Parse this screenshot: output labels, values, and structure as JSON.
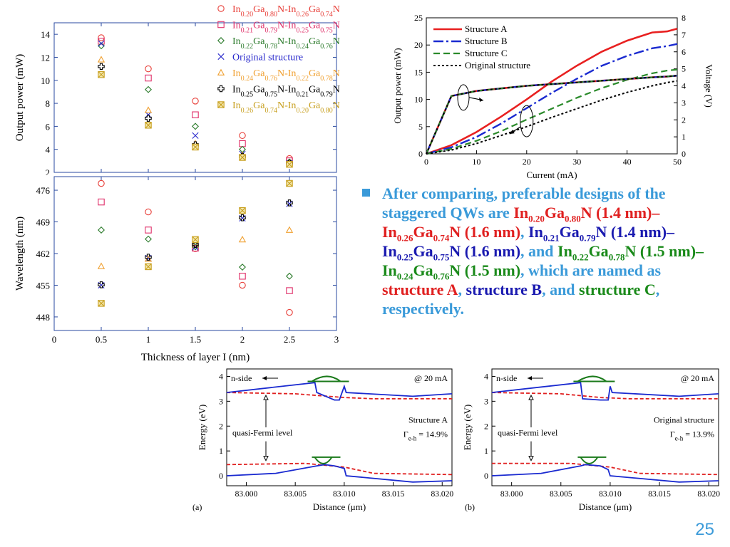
{
  "slide": {
    "page_number": "25",
    "bullet_segments": [
      {
        "text": "After comparing, preferable designs of the staggered QWs are ",
        "color": "light"
      },
      {
        "text": "In0.20Ga0.80N (1.4 nm)–In0.26Ga0.74N (1.6 nm)",
        "color": "red"
      },
      {
        "text": ", ",
        "color": "light"
      },
      {
        "text": "In0.21Ga0.79N (1.4 nm)–In0.25Ga0.75N (1.6 nm)",
        "color": "blue"
      },
      {
        "text": ", and ",
        "color": "light"
      },
      {
        "text": "In0.22Ga0.78N (1.5 nm)–In0.24Ga0.76N (1.5 nm)",
        "color": "green"
      },
      {
        "text": ", which are named as ",
        "color": "light"
      },
      {
        "text": "structure A",
        "color": "red"
      },
      {
        "text": ", ",
        "color": "light"
      },
      {
        "text": "structure B",
        "color": "blue"
      },
      {
        "text": ", and ",
        "color": "light"
      },
      {
        "text": "structure C",
        "color": "green"
      },
      {
        "text": ", respectively.",
        "color": "light"
      }
    ],
    "colors": {
      "light": "#3a9ad9",
      "red": "#e02020",
      "blue": "#1a1ab0",
      "green": "#1a8a1a"
    }
  },
  "chart_data": [
    {
      "type": "scatter",
      "id": "power-vs-thickness",
      "xlabel": "Thickness of layer I (nm)",
      "ylabel": "Output power (mW)",
      "xlim": [
        0,
        3
      ],
      "ylim": [
        2,
        15
      ],
      "xticks": [
        0,
        0.5,
        1,
        1.5,
        2,
        2.5,
        3
      ],
      "yticks": [
        2,
        4,
        6,
        8,
        10,
        12,
        14
      ],
      "x": [
        0.5,
        1,
        1.5,
        2,
        2.5
      ],
      "series": [
        {
          "name": "In0.20Ga0.80N-In0.26Ga0.74N",
          "marker": "circle",
          "color": "#e8403a",
          "values": [
            13.7,
            11.0,
            8.2,
            5.2,
            3.2
          ]
        },
        {
          "name": "In0.21Ga0.79N-In0.25Ga0.75N",
          "marker": "square",
          "color": "#e0306a",
          "values": [
            13.4,
            10.2,
            7.0,
            4.5,
            3.0
          ]
        },
        {
          "name": "In0.22Ga0.78N-In0.24Ga0.76N",
          "marker": "diamond",
          "color": "#2a7a2a",
          "values": [
            13.0,
            9.2,
            6.0,
            4.0,
            2.9
          ]
        },
        {
          "name": "Original structure",
          "marker": "cross",
          "color": "#2a2acc",
          "values": [
            13.2,
            7.0,
            5.2,
            3.6,
            2.8
          ]
        },
        {
          "name": "In0.24Ga0.76N-In0.22Ga0.78N",
          "marker": "triangle",
          "color": "#f0a030",
          "values": [
            11.8,
            7.4,
            4.5,
            3.5,
            2.8
          ]
        },
        {
          "name": "In0.25Ga0.75N-In0.21Ga0.79N",
          "marker": "plus",
          "color": "#000000",
          "values": [
            11.2,
            6.7,
            4.4,
            3.4,
            2.8
          ]
        },
        {
          "name": "In0.26Ga0.74N-In0.20Ga0.80N",
          "marker": "boxx",
          "color": "#c8a020",
          "values": [
            10.5,
            6.1,
            4.2,
            3.3,
            2.7
          ]
        }
      ]
    },
    {
      "type": "scatter",
      "id": "wavelength-vs-thickness",
      "xlabel": "Thickness of layer I (nm)",
      "ylabel": "Wavelength (nm)",
      "xlim": [
        0,
        3
      ],
      "ylim": [
        445,
        479
      ],
      "xticks": [
        0,
        0.5,
        1,
        1.5,
        2,
        2.5,
        3
      ],
      "yticks": [
        448,
        455,
        462,
        469,
        476
      ],
      "x": [
        0.5,
        1,
        1.5,
        2,
        2.5
      ],
      "series": [
        {
          "name": "In0.20Ga0.80N-In0.26Ga0.74N",
          "marker": "circle",
          "values": [
            477.5,
            471.2,
            463.1,
            455.0,
            449.0
          ]
        },
        {
          "name": "In0.21Ga0.79N-In0.25Ga0.75N",
          "marker": "square",
          "values": [
            473.4,
            467.2,
            463.2,
            457.0,
            453.8
          ]
        },
        {
          "name": "In0.22Ga0.78N-In0.24Ga0.76N",
          "marker": "diamond",
          "values": [
            467.2,
            465.2,
            463.5,
            459.0,
            457.0
          ]
        },
        {
          "name": "Original structure",
          "marker": "cross",
          "values": [
            455.0,
            461.0,
            463.4,
            469.8,
            473.0
          ]
        },
        {
          "name": "In0.24Ga0.76N-In0.22Ga0.78N",
          "marker": "triangle",
          "values": [
            459.2,
            460.8,
            464.2,
            465.1,
            467.2
          ]
        },
        {
          "name": "In0.25Ga0.75N-In0.21Ga0.79N",
          "marker": "plus",
          "values": [
            455.1,
            461.2,
            464.0,
            469.9,
            473.2
          ]
        },
        {
          "name": "In0.26Ga0.74N-In0.20Ga0.80N",
          "marker": "boxx",
          "values": [
            451.0,
            459.1,
            465.1,
            471.5,
            477.5
          ]
        }
      ]
    },
    {
      "type": "line",
      "id": "LIV",
      "xlabel": "Current (mA)",
      "ylabel": "Output power (mW)",
      "y2label": "Voltage (V)",
      "xlim": [
        0,
        50
      ],
      "ylim": [
        0,
        25
      ],
      "y2lim": [
        0,
        8
      ],
      "xticks": [
        0,
        10,
        20,
        30,
        40,
        50
      ],
      "yticks": [
        0,
        5,
        10,
        15,
        20,
        25
      ],
      "y2ticks": [
        0,
        1,
        2,
        3,
        4,
        5,
        6,
        7,
        8
      ],
      "legend_position": "top-left",
      "x": [
        0,
        5,
        10,
        15,
        20,
        25,
        30,
        35,
        40,
        45,
        48,
        50
      ],
      "series": [
        {
          "name": "Structure A",
          "style": "solid",
          "color": "#e82020",
          "values": [
            0,
            1.6,
            4.0,
            6.9,
            10.0,
            13.3,
            16.2,
            18.8,
            20.8,
            22.3,
            22.5,
            23.0
          ]
        },
        {
          "name": "Structure B",
          "style": "dashdot",
          "color": "#1a2ad0",
          "values": [
            0,
            1.2,
            3.1,
            5.6,
            8.4,
            11.2,
            13.8,
            16.2,
            18.0,
            19.4,
            19.8,
            20.2
          ]
        },
        {
          "name": "Structure C",
          "style": "dashed",
          "color": "#2a8a2a",
          "values": [
            0,
            0.9,
            2.4,
            4.2,
            6.3,
            8.3,
            10.3,
            12.1,
            13.6,
            14.8,
            15.3,
            15.5
          ]
        },
        {
          "name": "Original structure",
          "style": "dotted",
          "color": "#000000",
          "values": [
            0,
            0.7,
            1.9,
            3.4,
            5.0,
            6.7,
            8.3,
            9.9,
            11.3,
            12.5,
            13.1,
            13.4
          ]
        }
      ],
      "voltage_series": [
        {
          "name": "Structure A",
          "style": "solid",
          "color": "#e82020",
          "values": [
            0,
            3.4,
            3.7,
            3.85,
            4.0,
            4.1,
            4.2,
            4.3,
            4.4,
            4.5,
            4.55,
            4.6
          ]
        },
        {
          "name": "Structure B",
          "style": "dashdot",
          "color": "#1a2ad0",
          "values": [
            0,
            3.4,
            3.7,
            3.85,
            4.0,
            4.1,
            4.2,
            4.3,
            4.4,
            4.5,
            4.55,
            4.6
          ]
        },
        {
          "name": "Structure C",
          "style": "dashed",
          "color": "#2a8a2a",
          "values": [
            0,
            3.4,
            3.7,
            3.85,
            4.0,
            4.1,
            4.2,
            4.3,
            4.4,
            4.5,
            4.55,
            4.6
          ]
        },
        {
          "name": "Original structure",
          "style": "dotted",
          "color": "#000000",
          "values": [
            0,
            3.4,
            3.7,
            3.85,
            4.0,
            4.1,
            4.2,
            4.3,
            4.4,
            4.5,
            4.55,
            4.6
          ]
        }
      ]
    },
    {
      "type": "line",
      "id": "band-a",
      "panel_label": "(a)",
      "xlabel": "Distance (μm)",
      "ylabel": "Energy (eV)",
      "xlim": [
        82.998,
        83.021
      ],
      "ylim": [
        -0.4,
        4.3
      ],
      "xticks": [
        83.0,
        83.005,
        83.01,
        83.015,
        83.02
      ],
      "xtick_labels": [
        "83.000",
        "83.005",
        "83.010",
        "83.015",
        "83.020"
      ],
      "yticks": [
        0,
        1,
        2,
        3,
        4
      ],
      "annotations": {
        "n_side": "n-side",
        "fermi": "quasi-Fermi level",
        "current": "@ 20 mA",
        "structure": "Structure A",
        "gamma": "Γ",
        "gamma_sub": "e-h",
        "gamma_value": " = 14.9%"
      },
      "conduction_band": {
        "x": [
          82.998,
          83.007,
          83.0072,
          83.009,
          83.0095,
          83.01,
          83.0102,
          83.017,
          83.021
        ],
        "y": [
          3.35,
          3.75,
          3.35,
          3.05,
          3.05,
          3.6,
          3.35,
          3.2,
          3.3
        ]
      },
      "valence_band": {
        "x": [
          82.998,
          83.003,
          83.0072,
          83.008,
          83.009,
          83.01,
          83.0102,
          83.017,
          83.021
        ],
        "y": [
          0.0,
          0.1,
          0.4,
          0.45,
          0.4,
          0.3,
          0.0,
          -0.25,
          -0.2
        ]
      },
      "fermi_n": {
        "x": [
          82.998,
          83.005,
          83.01,
          83.013,
          83.021
        ],
        "y": [
          3.35,
          3.3,
          3.15,
          3.1,
          3.1
        ]
      },
      "fermi_p": {
        "x": [
          82.998,
          83.006,
          83.01,
          83.013,
          83.021
        ],
        "y": [
          0.45,
          0.5,
          0.35,
          0.1,
          0.05
        ]
      }
    },
    {
      "type": "line",
      "id": "band-b",
      "panel_label": "(b)",
      "xlabel": "Distance (μm)",
      "ylabel": "Energy (eV)",
      "xlim": [
        82.998,
        83.021
      ],
      "ylim": [
        -0.4,
        4.3
      ],
      "xticks": [
        83.0,
        83.005,
        83.01,
        83.015,
        83.02
      ],
      "xtick_labels": [
        "83.000",
        "83.005",
        "83.010",
        "83.015",
        "83.020"
      ],
      "yticks": [
        0,
        1,
        2,
        3,
        4
      ],
      "annotations": {
        "n_side": "n-side",
        "fermi": "quasi-Fermi level",
        "current": "@ 20 mA",
        "structure": "Original structure",
        "gamma": "Γ",
        "gamma_sub": "e-h",
        "gamma_value": " = 13.9%"
      },
      "conduction_band": {
        "x": [
          82.998,
          83.007,
          83.0072,
          83.009,
          83.0098,
          83.01,
          83.0102,
          83.017,
          83.021
        ],
        "y": [
          3.35,
          3.75,
          3.1,
          3.05,
          3.05,
          3.6,
          3.35,
          3.2,
          3.3
        ]
      },
      "valence_band": {
        "x": [
          82.998,
          83.003,
          83.007,
          83.0075,
          83.009,
          83.0098,
          83.01,
          83.017,
          83.021
        ],
        "y": [
          0.0,
          0.1,
          0.4,
          0.45,
          0.4,
          0.25,
          0.0,
          -0.25,
          -0.2
        ]
      },
      "fermi_n": {
        "x": [
          82.998,
          83.005,
          83.009,
          83.012,
          83.021
        ],
        "y": [
          3.35,
          3.3,
          3.15,
          3.1,
          3.1
        ]
      },
      "fermi_p": {
        "x": [
          82.998,
          83.006,
          83.01,
          83.013,
          83.021
        ],
        "y": [
          0.5,
          0.5,
          0.35,
          0.1,
          0.05
        ]
      }
    }
  ]
}
